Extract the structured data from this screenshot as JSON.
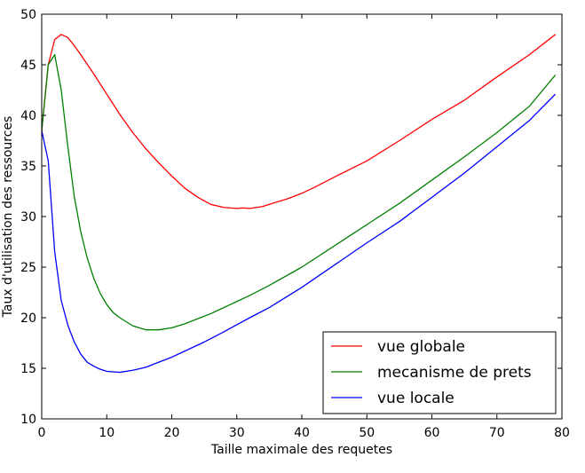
{
  "chart_data": {
    "type": "line",
    "title": "",
    "xlabel": "Taille maximale des requetes",
    "ylabel": "Taux d'utilisation des ressources",
    "xlim": [
      0,
      80
    ],
    "ylim": [
      10,
      50
    ],
    "xticks": [
      0,
      10,
      20,
      30,
      40,
      50,
      60,
      70,
      80
    ],
    "yticks": [
      10,
      15,
      20,
      25,
      30,
      35,
      40,
      45,
      50
    ],
    "xtick_labels": [
      "0",
      "10",
      "20",
      "30",
      "40",
      "50",
      "60",
      "70",
      "80"
    ],
    "ytick_labels": [
      "10",
      "15",
      "20",
      "25",
      "30",
      "35",
      "40",
      "45",
      "50"
    ],
    "grid": false,
    "legend_position": "lower-right",
    "series": [
      {
        "name": "vue globale",
        "color": "#ff0000",
        "x": [
          0,
          1,
          2,
          3,
          4,
          5,
          6,
          8,
          10,
          12,
          14,
          16,
          18,
          20,
          22,
          24,
          26,
          28,
          30,
          31,
          32,
          34,
          36,
          38,
          40,
          42,
          45,
          50,
          55,
          60,
          65,
          70,
          75,
          79
        ],
        "y": [
          38.5,
          45,
          47.5,
          48,
          47.7,
          46.9,
          46,
          44.1,
          42.1,
          40.1,
          38.3,
          36.7,
          35.3,
          34.0,
          32.8,
          31.9,
          31.2,
          30.9,
          30.8,
          30.85,
          30.8,
          31.0,
          31.4,
          31.8,
          32.3,
          32.9,
          33.9,
          35.5,
          37.5,
          39.6,
          41.5,
          43.8,
          46.0,
          48.0
        ]
      },
      {
        "name": "mecanisme de prets",
        "color": "#008000",
        "x": [
          0,
          1,
          2,
          3,
          4,
          5,
          6,
          7,
          8,
          9,
          10,
          11,
          12,
          14,
          16,
          18,
          20,
          22,
          24,
          26,
          28,
          30,
          32,
          35,
          40,
          45,
          50,
          55,
          60,
          65,
          70,
          75,
          79
        ],
        "y": [
          38.5,
          45,
          46,
          42.5,
          37,
          32,
          28.5,
          25.9,
          23.9,
          22.4,
          21.3,
          20.5,
          20.0,
          19.2,
          18.8,
          18.8,
          19.0,
          19.4,
          19.9,
          20.4,
          21.0,
          21.6,
          22.2,
          23.2,
          25.0,
          27.1,
          29.2,
          31.3,
          33.6,
          35.9,
          38.3,
          40.9,
          44.0
        ]
      },
      {
        "name": "vue locale",
        "color": "#0000ff",
        "x": [
          0,
          1,
          2,
          3,
          4,
          5,
          6,
          7,
          8,
          9,
          10,
          11,
          12,
          14,
          16,
          18,
          20,
          22,
          25,
          28,
          30,
          32,
          35,
          40,
          45,
          50,
          55,
          60,
          65,
          70,
          75,
          79
        ],
        "y": [
          38.5,
          35.5,
          26.5,
          21.7,
          19.3,
          17.6,
          16.4,
          15.6,
          15.2,
          14.9,
          14.7,
          14.65,
          14.6,
          14.8,
          15.1,
          15.6,
          16.1,
          16.7,
          17.6,
          18.6,
          19.3,
          20.0,
          21.0,
          23.0,
          25.2,
          27.4,
          29.5,
          31.9,
          34.3,
          36.9,
          39.5,
          42.1
        ]
      }
    ]
  }
}
